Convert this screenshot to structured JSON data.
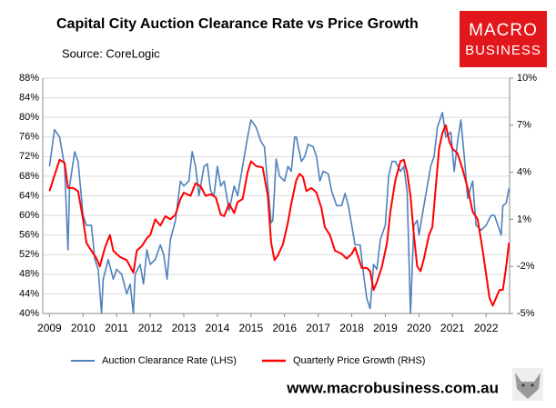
{
  "chart_data": {
    "type": "line",
    "title": "Capital City Auction Clearance Rate vs Price Growth",
    "source": "Source: CoreLogic",
    "logo": [
      "MACRO",
      "BUSINESS"
    ],
    "website": "www.macrobusiness.com.au",
    "xlim": [
      2008.8,
      2022.7
    ],
    "xticks": [
      2009,
      2010,
      2011,
      2012,
      2013,
      2014,
      2015,
      2016,
      2017,
      2018,
      2019,
      2020,
      2021,
      2022
    ],
    "ylim": [
      40,
      88
    ],
    "yticks": [
      {
        "value": 40,
        "label": "40%"
      },
      {
        "value": 44,
        "label": "44%"
      },
      {
        "value": 48,
        "label": "48%"
      },
      {
        "value": 52,
        "label": "52%"
      },
      {
        "value": 56,
        "label": "56%"
      },
      {
        "value": 60,
        "label": "60%"
      },
      {
        "value": 64,
        "label": "64%"
      },
      {
        "value": 68,
        "label": "68%"
      },
      {
        "value": 72,
        "label": "72%"
      },
      {
        "value": 76,
        "label": "76%"
      },
      {
        "value": 80,
        "label": "80%"
      },
      {
        "value": 84,
        "label": "84%"
      },
      {
        "value": 88,
        "label": "88%"
      }
    ],
    "y2lim": [
      -5,
      10
    ],
    "y2ticks": [
      {
        "value": -5,
        "label": "-5%"
      },
      {
        "value": -2,
        "label": "-2%"
      },
      {
        "value": 1,
        "label": "1%"
      },
      {
        "value": 4,
        "label": "4%"
      },
      {
        "value": 7,
        "label": "7%"
      },
      {
        "value": 10,
        "label": "10%"
      }
    ],
    "grid": true,
    "series": [
      {
        "name": "Auction Clearance Rate (LHS)",
        "color": "#4f81bd",
        "x": [
          2009.0,
          2009.15,
          2009.3,
          2009.45,
          2009.55,
          2009.6,
          2009.75,
          2009.85,
          2010.0,
          2010.1,
          2010.25,
          2010.35,
          2010.45,
          2010.55,
          2010.6,
          2010.75,
          2010.9,
          2011.0,
          2011.15,
          2011.3,
          2011.4,
          2011.5,
          2011.55,
          2011.7,
          2011.8,
          2011.9,
          2012.0,
          2012.15,
          2012.3,
          2012.4,
          2012.5,
          2012.6,
          2012.75,
          2012.9,
          2013.0,
          2013.15,
          2013.25,
          2013.35,
          2013.45,
          2013.6,
          2013.7,
          2013.8,
          2013.9,
          2014.0,
          2014.1,
          2014.2,
          2014.35,
          2014.5,
          2014.6,
          2014.75,
          2014.9,
          2015.0,
          2015.15,
          2015.3,
          2015.4,
          2015.5,
          2015.6,
          2015.65,
          2015.75,
          2015.85,
          2016.0,
          2016.1,
          2016.2,
          2016.3,
          2016.35,
          2016.5,
          2016.6,
          2016.7,
          2016.85,
          2016.95,
          2017.05,
          2017.15,
          2017.3,
          2017.4,
          2017.55,
          2017.7,
          2017.8,
          2017.9,
          2018.0,
          2018.1,
          2018.25,
          2018.35,
          2018.45,
          2018.55,
          2018.65,
          2018.75,
          2018.85,
          2019.0,
          2019.1,
          2019.2,
          2019.3,
          2019.45,
          2019.55,
          2019.65,
          2019.75,
          2019.85,
          2019.95,
          2020.0,
          2020.1,
          2020.2,
          2020.35,
          2020.45,
          2020.55,
          2020.7,
          2020.8,
          2020.95,
          2021.05,
          2021.15,
          2021.25,
          2021.35,
          2021.45,
          2021.6,
          2021.7,
          2021.85,
          2022.0,
          2022.15,
          2022.25,
          2022.35,
          2022.45,
          2022.5,
          2022.6,
          2022.68
        ],
        "values": [
          70,
          77.5,
          76,
          70,
          53,
          66,
          73,
          71,
          60,
          58,
          58,
          51,
          49,
          40,
          47,
          51,
          47,
          49,
          48,
          44,
          46,
          40,
          48,
          50,
          46,
          53,
          50,
          51,
          54,
          52,
          47,
          55,
          59,
          67,
          66,
          67,
          73,
          70,
          64,
          70,
          70.5,
          65,
          64,
          70,
          66,
          67,
          61,
          66,
          64,
          70,
          76,
          79.5,
          78,
          75,
          74,
          66,
          58.5,
          59,
          71.5,
          68,
          67,
          70,
          69,
          76,
          76,
          71,
          72,
          74.5,
          74,
          72,
          67,
          69,
          68.5,
          65,
          62,
          62,
          64.5,
          62,
          58,
          54,
          54,
          48,
          43,
          41,
          50,
          49,
          55,
          58,
          68,
          71,
          71,
          69,
          70,
          65,
          40,
          58,
          59,
          56,
          60,
          64,
          70,
          72,
          78,
          81,
          76,
          77,
          69,
          75,
          79.5,
          72,
          63.5,
          67,
          58,
          57,
          58,
          60,
          60,
          58,
          56,
          62,
          62.5,
          65.5
        ]
      },
      {
        "name": "Quarterly Price Growth (RHS)",
        "color": "#ff0000",
        "axis": "y2",
        "x": [
          2009.0,
          2009.15,
          2009.3,
          2009.45,
          2009.55,
          2009.7,
          2009.85,
          2010.0,
          2010.1,
          2010.25,
          2010.4,
          2010.5,
          2010.65,
          2010.8,
          2010.9,
          2011.1,
          2011.3,
          2011.5,
          2011.6,
          2011.75,
          2011.9,
          2012.0,
          2012.15,
          2012.3,
          2012.45,
          2012.6,
          2012.75,
          2012.9,
          2013.0,
          2013.2,
          2013.35,
          2013.5,
          2013.65,
          2013.8,
          2013.95,
          2014.1,
          2014.2,
          2014.35,
          2014.5,
          2014.6,
          2014.75,
          2014.9,
          2015.0,
          2015.15,
          2015.35,
          2015.5,
          2015.6,
          2015.7,
          2015.8,
          2015.95,
          2016.1,
          2016.2,
          2016.35,
          2016.45,
          2016.55,
          2016.65,
          2016.8,
          2016.95,
          2017.1,
          2017.2,
          2017.35,
          2017.5,
          2017.7,
          2017.85,
          2018.0,
          2018.1,
          2018.3,
          2018.45,
          2018.55,
          2018.65,
          2018.75,
          2018.9,
          2019.05,
          2019.15,
          2019.3,
          2019.45,
          2019.55,
          2019.65,
          2019.75,
          2019.85,
          2019.95,
          2020.05,
          2020.15,
          2020.3,
          2020.4,
          2020.5,
          2020.6,
          2020.7,
          2020.8,
          2020.9,
          2021.0,
          2021.15,
          2021.3,
          2021.45,
          2021.6,
          2021.75,
          2021.9,
          2022.0,
          2022.1,
          2022.2,
          2022.3,
          2022.4,
          2022.5,
          2022.6,
          2022.68
        ],
        "values": [
          2.8,
          3.8,
          4.8,
          4.6,
          3.0,
          3.0,
          2.8,
          1.0,
          -0.5,
          -1.0,
          -1.5,
          -2.0,
          -0.8,
          0.0,
          -1.0,
          -1.4,
          -1.6,
          -2.4,
          -1.0,
          -0.7,
          -0.2,
          0.0,
          1.0,
          0.6,
          1.2,
          1.0,
          1.3,
          2.3,
          2.7,
          2.5,
          3.3,
          3.1,
          2.5,
          2.6,
          2.4,
          1.3,
          1.2,
          2.0,
          1.4,
          2.1,
          2.3,
          4.0,
          4.7,
          4.4,
          4.3,
          2.5,
          -0.5,
          -1.6,
          -1.3,
          -0.6,
          0.8,
          2.0,
          3.5,
          3.9,
          3.7,
          2.8,
          3.0,
          2.7,
          1.7,
          0.5,
          0.0,
          -1.0,
          -1.2,
          -1.5,
          -1.2,
          -0.8,
          -2.1,
          -2.1,
          -2.3,
          -3.5,
          -3.0,
          -2.0,
          -0.5,
          1.5,
          3.5,
          4.7,
          4.8,
          4.0,
          2.5,
          0.0,
          -2.0,
          -2.3,
          -1.5,
          0.0,
          0.5,
          3.0,
          5.5,
          6.5,
          7.0,
          6.0,
          5.5,
          5.2,
          4.2,
          3.0,
          1.5,
          1.0,
          -1.0,
          -2.5,
          -4.0,
          -4.5,
          -4.0,
          -3.5,
          -3.5,
          -2.0,
          -0.5
        ]
      }
    ]
  }
}
